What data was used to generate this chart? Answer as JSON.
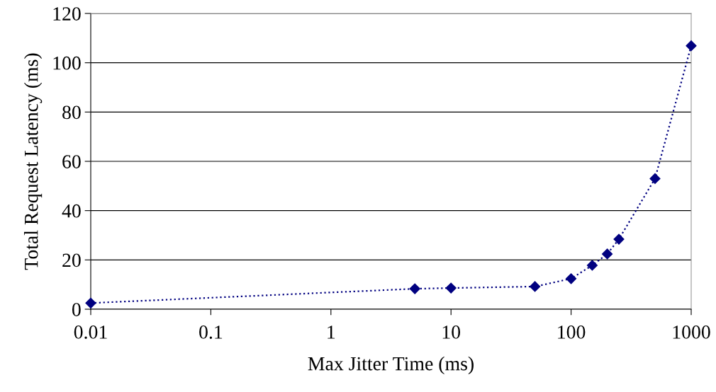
{
  "chart_data": {
    "type": "line",
    "xlabel": "Max Jitter Time (ms)",
    "ylabel": "Total Request Latency (ms)",
    "log": "x",
    "x": [
      0.01,
      5,
      10,
      50,
      100,
      150,
      200,
      250,
      500,
      1000
    ],
    "series": [
      {
        "color": "#000080",
        "values": [
          2.5,
          8.3,
          8.6,
          9.2,
          12.4,
          17.8,
          22.4,
          28.4,
          53,
          106.9
        ]
      }
    ],
    "xlim": [
      0.01,
      1000
    ],
    "xticks": [
      0.01,
      0.1,
      1,
      10,
      100,
      1000
    ],
    "ylim": [
      0,
      120
    ],
    "yticks": [
      0,
      20,
      40,
      60,
      80,
      100,
      120
    ],
    "grid": "y",
    "marker": "diamond",
    "line_style": "dotted"
  }
}
